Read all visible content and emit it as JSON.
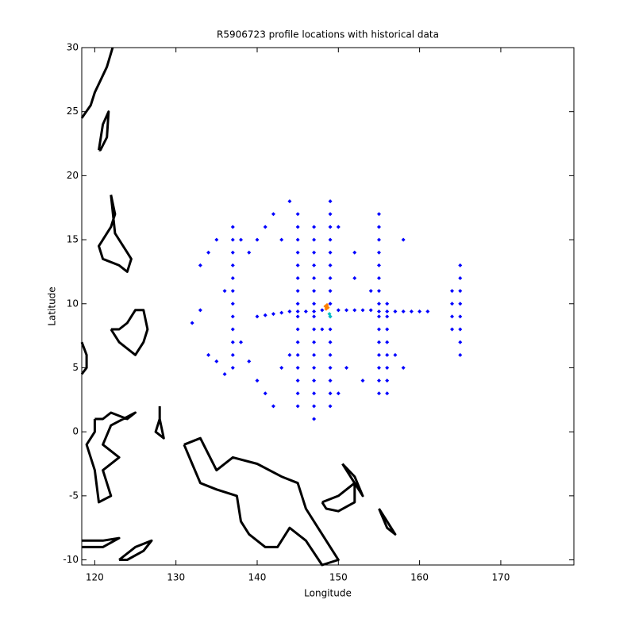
{
  "chart_data": {
    "type": "scatter",
    "title": "R5906723 profile locations with historical data",
    "x_label": "Longitude",
    "y_label": "Latitude",
    "xlim": [
      118.4,
      179
    ],
    "ylim": [
      -10.4,
      30
    ],
    "xticks": [
      120,
      130,
      140,
      150,
      160,
      170
    ],
    "yticks": [
      -10,
      -5,
      0,
      5,
      10,
      15,
      20,
      25,
      30
    ],
    "series": [
      {
        "color": "#0000ff",
        "style": "marker",
        "x": [
          140,
          141,
          142,
          143,
          144,
          145,
          146,
          147,
          148,
          150,
          151,
          152,
          153,
          154,
          155,
          156,
          157,
          158,
          159,
          160,
          161,
          137,
          137,
          137,
          137,
          137,
          137,
          137,
          137,
          137,
          137,
          137,
          137,
          145,
          145,
          145,
          145,
          145,
          145,
          145,
          145,
          145,
          145,
          145,
          145,
          145,
          145,
          145,
          145,
          147,
          147,
          147,
          147,
          147,
          147,
          147,
          147,
          147,
          147,
          147,
          147,
          147,
          147,
          147,
          147,
          149,
          149,
          149,
          149,
          149,
          149,
          149,
          149,
          149,
          149,
          149,
          149,
          149,
          149,
          149,
          149,
          149,
          155,
          155,
          155,
          155,
          155,
          155,
          155,
          155,
          155,
          155,
          155,
          155,
          155,
          155,
          155,
          156,
          156,
          156,
          156,
          156,
          156,
          156,
          156,
          165,
          165,
          165,
          165,
          165,
          165,
          165,
          165,
          164,
          164,
          164,
          164,
          138,
          139,
          140,
          141,
          142,
          132,
          133,
          133,
          134,
          135,
          136,
          138,
          139,
          140,
          141,
          142,
          143,
          144,
          150,
          152,
          158,
          157,
          158,
          153,
          151,
          150,
          134,
          135,
          136,
          144,
          143,
          148,
          152,
          154
        ],
        "y": [
          9,
          9.1,
          9.2,
          9.3,
          9.4,
          9.4,
          9.4,
          9.4,
          9.5,
          9.5,
          9.5,
          9.5,
          9.5,
          9.5,
          9.4,
          9.4,
          9.4,
          9.4,
          9.4,
          9.4,
          9.4,
          5,
          6,
          7,
          8,
          9,
          10,
          11,
          12,
          13,
          14,
          15,
          16,
          2,
          3,
          4,
          5,
          6,
          7,
          8,
          9,
          10,
          11,
          12,
          13,
          14,
          15,
          16,
          17,
          1,
          2,
          3,
          4,
          5,
          6,
          7,
          8,
          9,
          10,
          11,
          12,
          13,
          14,
          15,
          16,
          2,
          3,
          4,
          5,
          6,
          7,
          8,
          9,
          10,
          11,
          12,
          13,
          14,
          15,
          16,
          17,
          18,
          3,
          4,
          5,
          6,
          7,
          8,
          9,
          10,
          11,
          12,
          13,
          14,
          15,
          16,
          17,
          3,
          4,
          5,
          6,
          7,
          8,
          9,
          10,
          6,
          7,
          8,
          9,
          10,
          11,
          12,
          13,
          8,
          9,
          10,
          11,
          7,
          5.5,
          4,
          3,
          2,
          8.5,
          9.5,
          13,
          14,
          15,
          11,
          15,
          14,
          15,
          16,
          17,
          15,
          18,
          16,
          14,
          15,
          6,
          5,
          4,
          5,
          3,
          6,
          5.5,
          4.5,
          6,
          5,
          8,
          12,
          11
        ]
      },
      {
        "color": "#000000",
        "style": "line",
        "x": [
          118.4,
          119.5,
          120,
          121.5,
          122.2,
          null,
          120.5,
          121,
          121.7,
          121.5,
          120.7,
          120.5,
          null,
          122,
          122.5,
          122,
          121,
          120.5,
          121,
          123,
          124,
          124.5,
          124,
          122.5,
          122,
          null,
          122,
          123,
          125,
          126,
          126.5,
          126,
          125,
          124,
          123,
          122,
          null,
          118.4,
          119,
          119,
          118.4,
          null,
          120,
          121,
          122,
          124,
          125,
          122,
          121,
          123,
          121,
          122,
          120.5,
          120,
          119,
          120,
          120,
          null,
          128,
          128,
          127.5,
          128.5,
          128,
          128,
          null,
          118.4,
          121,
          123,
          121,
          118.4,
          null,
          123,
          125,
          127,
          126,
          124,
          123,
          null,
          131,
          133,
          135,
          137,
          140,
          143,
          145,
          146,
          147.5,
          149,
          150,
          148,
          146,
          144,
          142.5,
          141,
          139,
          138,
          137.5,
          135,
          133,
          132,
          131,
          null,
          148,
          150,
          152,
          152,
          150,
          148.5,
          148,
          null,
          150.5,
          152,
          153,
          152.5,
          151,
          150.5,
          null,
          155,
          156,
          157,
          156,
          155
        ],
        "y": [
          24.5,
          25.5,
          26.5,
          28.5,
          30,
          null,
          22,
          24,
          25,
          23,
          22,
          22,
          null,
          18.5,
          17,
          16,
          15,
          14.5,
          13.5,
          13,
          12.5,
          13.5,
          14,
          15.5,
          18.5,
          null,
          8,
          7,
          6,
          7,
          8,
          9.5,
          9.5,
          8.5,
          8,
          8,
          null,
          7,
          6,
          5,
          4.5,
          null,
          1,
          1,
          1.5,
          1,
          1.5,
          0.5,
          -1,
          -2,
          -3,
          -5,
          -5.5,
          -3,
          -1,
          0,
          1,
          null,
          2,
          1,
          0,
          -0.5,
          1,
          2,
          null,
          -8.5,
          -8.5,
          -8.3,
          -9,
          -9,
          null,
          -10,
          -9,
          -8.5,
          -9.3,
          -10,
          -10,
          null,
          -1,
          -0.5,
          -3,
          -2,
          -2.5,
          -3.5,
          -4,
          -6,
          -7.5,
          -9,
          -10,
          -10.4,
          -8.5,
          -7.5,
          -9,
          -9,
          -8,
          -7,
          -5,
          -4.5,
          -4,
          -2.5,
          -1,
          null,
          -5.5,
          -5,
          -4,
          -5.5,
          -6.2,
          -6,
          -5.5,
          null,
          -2.5,
          -3.5,
          -5,
          -4.5,
          -3,
          -2.5,
          null,
          -6,
          -7,
          -8,
          -7.5,
          -6
        ]
      },
      {
        "color": "#ff8000",
        "style": "marker",
        "x": [
          148.4,
          148.6,
          148.7,
          148.5
        ],
        "y": [
          9.8,
          9.9,
          9.7,
          9.6
        ]
      },
      {
        "color": "#00c0c0",
        "style": "marker",
        "x": [
          148.9,
          149
        ],
        "y": [
          9.2,
          9
        ]
      }
    ]
  }
}
